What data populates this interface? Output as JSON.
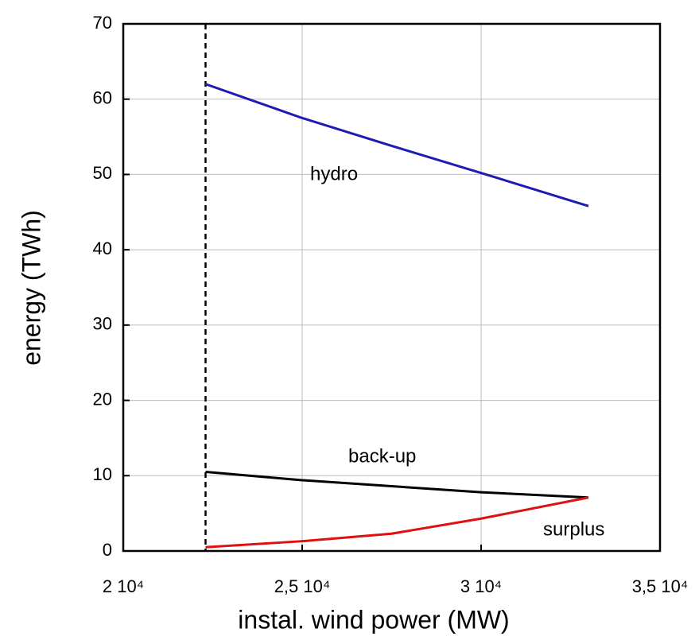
{
  "chart_data": {
    "type": "line",
    "xlabel": "instal. wind power (MW)",
    "ylabel": "energy (TWh)",
    "x": [
      22300,
      25000,
      27500,
      30000,
      33000
    ],
    "series": [
      {
        "name": "hydro",
        "color": "#1c1cb4",
        "values": [
          62.0,
          57.5,
          53.8,
          50.2,
          45.8
        ]
      },
      {
        "name": "back-up",
        "color": "#000000",
        "values": [
          10.5,
          9.4,
          8.6,
          7.8,
          7.1
        ]
      },
      {
        "name": "surplus",
        "color": "#e01010",
        "values": [
          0.5,
          1.3,
          2.3,
          4.3,
          7.1
        ]
      }
    ],
    "vline_x": 22300,
    "xlim": [
      20000,
      35000
    ],
    "xticks": [
      {
        "value": 20000,
        "label": "2 10⁴"
      },
      {
        "value": 25000,
        "label": "2,5 10⁴"
      },
      {
        "value": 30000,
        "label": "3 10⁴"
      },
      {
        "value": 35000,
        "label": "3,5 10⁴"
      }
    ],
    "ylim": [
      0,
      70
    ],
    "yticks": [
      0,
      10,
      20,
      30,
      40,
      50,
      60,
      70
    ],
    "grid": true
  }
}
